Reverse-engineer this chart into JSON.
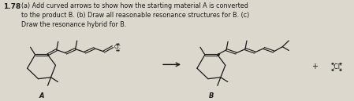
{
  "background_color": "#ddd8ce",
  "text_color": "#1a1a1a",
  "title_text": "1.78",
  "problem_text": "(a) Add curved arrows to show how the starting material A is converted\nto the product B. (b) Draw all reasonable resonance structures for B. (c)\nDraw the resonance hybrid for B.",
  "label_A": "A",
  "label_B": "B",
  "label_plus": "+",
  "figsize": [
    4.49,
    1.29
  ],
  "dpi": 100
}
